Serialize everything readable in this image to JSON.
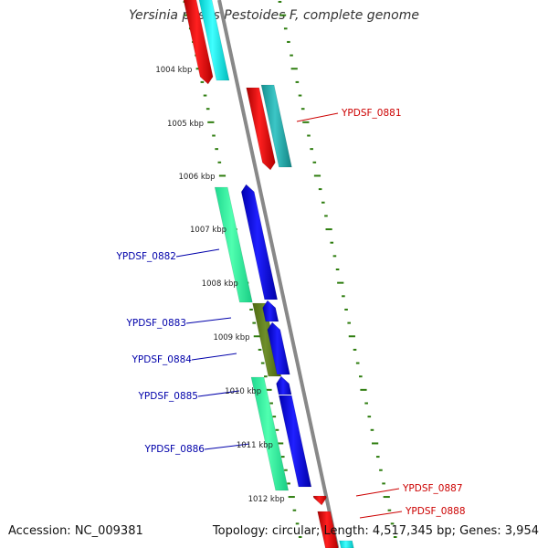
{
  "title": "Yersinia pestis Pestoides F, complete genome",
  "footer": {
    "accession": "Accession: NC_009381",
    "summary": "Topology: circular; Length: 4,517,345 bp; Genes: 3,954"
  },
  "scale": {
    "ticks": [
      "1004 kbp",
      "1005 kbp",
      "1006 kbp",
      "1007 kbp",
      "1008 kbp",
      "1009 kbp",
      "1010 kbp",
      "1011 kbp",
      "1012 kbp"
    ]
  },
  "colors": {
    "reverse_strand_label": "#cc0000",
    "forward_strand_label": "#0000aa",
    "tick": "#2e7d0f",
    "backbone": "#888888"
  },
  "genes": [
    {
      "label": "YPDSF_0881",
      "strand": "reverse"
    },
    {
      "label": "YPDSF_0882",
      "strand": "forward"
    },
    {
      "label": "YPDSF_0883",
      "strand": "forward"
    },
    {
      "label": "YPDSF_0884",
      "strand": "forward"
    },
    {
      "label": "YPDSF_0885",
      "strand": "forward"
    },
    {
      "label": "YPDSF_0886",
      "strand": "forward"
    },
    {
      "label": "YPDSF_0887",
      "strand": "reverse"
    },
    {
      "label": "YPDSF_0888",
      "strand": "reverse"
    }
  ]
}
